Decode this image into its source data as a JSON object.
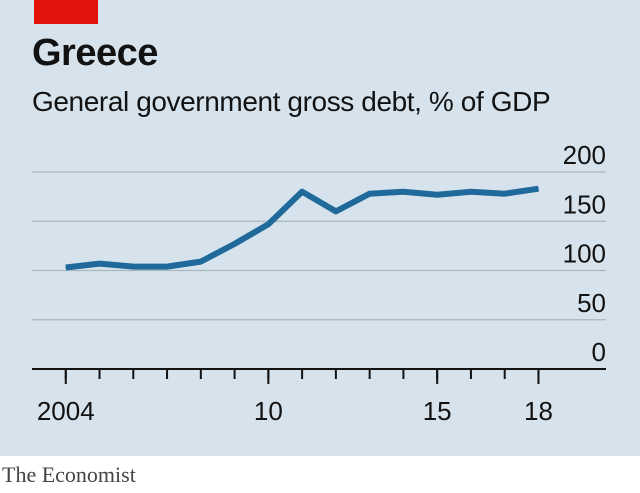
{
  "header": {
    "title": "Greece",
    "subtitle": "General government gross debt, % of GDP"
  },
  "source": "The Economist",
  "colors": {
    "background": "#d6e3ec",
    "accent": "#e3120b",
    "line": "#1f6a9a",
    "grid": "#a9b6bf",
    "axis": "#121212"
  },
  "chart_data": {
    "type": "line",
    "title": "Greece",
    "subtitle": "General government gross debt, % of GDP",
    "xlabel": "",
    "ylabel": "",
    "xlim": [
      2003,
      2020
    ],
    "ylim": [
      0,
      200
    ],
    "y_ticks": [
      0,
      50,
      100,
      150,
      200
    ],
    "y_tick_labels": [
      "0",
      "50",
      "100",
      "150",
      "200"
    ],
    "x_minor_ticks": [
      2004,
      2005,
      2006,
      2007,
      2008,
      2009,
      2010,
      2011,
      2012,
      2013,
      2014,
      2015,
      2016,
      2017,
      2018
    ],
    "x_tick_labels": [
      {
        "value": 2004,
        "label": "2004"
      },
      {
        "value": 2010,
        "label": "10"
      },
      {
        "value": 2015,
        "label": "15"
      },
      {
        "value": 2018,
        "label": "18"
      }
    ],
    "grid": true,
    "x": [
      2004,
      2005,
      2006,
      2007,
      2008,
      2009,
      2010,
      2011,
      2012,
      2013,
      2014,
      2015,
      2016,
      2017,
      2018
    ],
    "series": [
      {
        "values": [
          103,
          107,
          104,
          104,
          109,
          127,
          147,
          180,
          160,
          178,
          180,
          177,
          180,
          178,
          183
        ]
      }
    ]
  }
}
